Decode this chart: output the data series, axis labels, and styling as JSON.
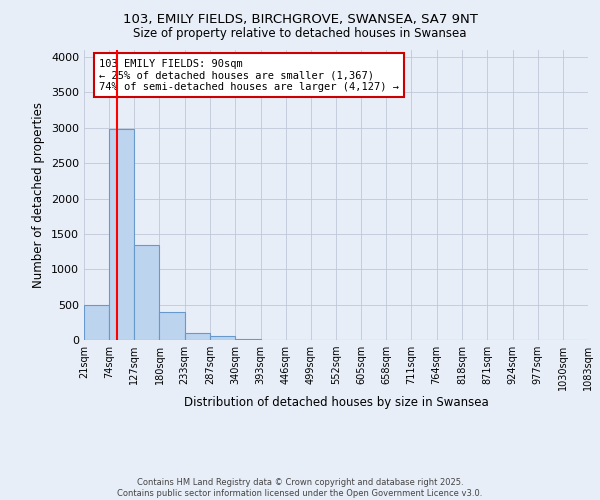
{
  "title1": "103, EMILY FIELDS, BIRCHGROVE, SWANSEA, SA7 9NT",
  "title2": "Size of property relative to detached houses in Swansea",
  "xlabel": "Distribution of detached houses by size in Swansea",
  "ylabel": "Number of detached properties",
  "bin_edges": [
    21,
    74,
    127,
    180,
    233,
    287,
    340,
    393,
    446,
    499,
    552,
    605,
    658,
    711,
    764,
    818,
    871,
    924,
    977,
    1030,
    1083
  ],
  "bar_heights": [
    500,
    2980,
    1340,
    390,
    100,
    50,
    15,
    5,
    3,
    2,
    1,
    1,
    0,
    0,
    0,
    0,
    0,
    0,
    0,
    0
  ],
  "bar_color": "#bdd4ee",
  "bar_edge_color": "#6699cc",
  "red_line_x": 90,
  "annotation_text": "103 EMILY FIELDS: 90sqm\n← 25% of detached houses are smaller (1,367)\n74% of semi-detached houses are larger (4,127) →",
  "annotation_box_color": "#ffffff",
  "annotation_box_edge_color": "#cc0000",
  "ylim": [
    0,
    4100
  ],
  "yticks": [
    0,
    500,
    1000,
    1500,
    2000,
    2500,
    3000,
    3500,
    4000
  ],
  "footer1": "Contains HM Land Registry data © Crown copyright and database right 2025.",
  "footer2": "Contains public sector information licensed under the Open Government Licence v3.0.",
  "bg_color": "#e8eef8",
  "plot_bg_color": "#e8eef8"
}
